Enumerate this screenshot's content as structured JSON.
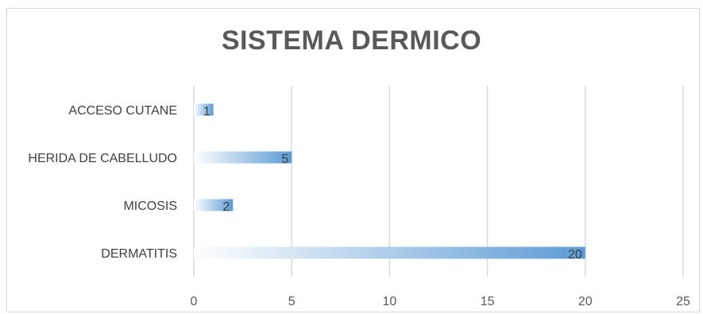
{
  "chart_data": {
    "type": "bar",
    "orientation": "horizontal",
    "title": "SISTEMA DERMICO",
    "categories": [
      "ACCESO CUTANE",
      "HERIDA DE CABELLUDO",
      "MICOSIS",
      "DERMATITIS"
    ],
    "values": [
      1,
      5,
      2,
      20
    ],
    "xlim": [
      0,
      25
    ],
    "xticks": [
      "0",
      "5",
      "10",
      "15",
      "20",
      "25"
    ],
    "xlabel": "",
    "ylabel": "",
    "grid": true,
    "data_labels": true,
    "bar_color": "#5b9bd5"
  }
}
